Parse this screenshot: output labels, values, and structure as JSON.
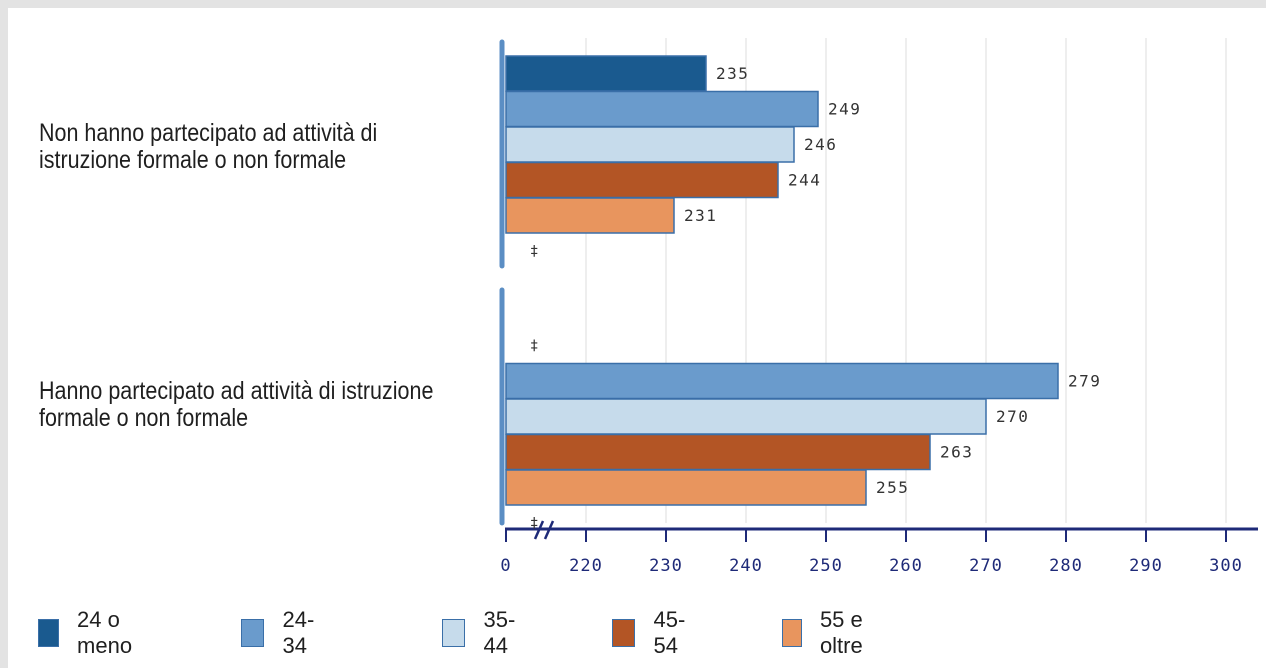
{
  "chart_data": {
    "type": "bar",
    "orientation": "horizontal",
    "categories": [
      "Non hanno partecipato ad attività di istruzione formale o non formale",
      "Hanno partecipato ad attività di istruzione formale o non formale"
    ],
    "series": [
      {
        "name": "24 o meno",
        "color": "#1a5a8f",
        "values": [
          235,
          null
        ],
        "labels": [
          "235",
          "‡"
        ]
      },
      {
        "name": "24-34",
        "color": "#6a9bcc",
        "values": [
          249,
          279
        ],
        "labels": [
          "249",
          "279"
        ]
      },
      {
        "name": "35-44",
        "color": "#c6dbeb",
        "values": [
          246,
          270
        ],
        "labels": [
          "246",
          "270"
        ]
      },
      {
        "name": "45-54",
        "color": "#b35525",
        "values": [
          244,
          263
        ],
        "labels": [
          "244",
          "263"
        ]
      },
      {
        "name": "55 e oltre",
        "color": "#e8955e",
        "values": [
          231,
          255
        ],
        "labels": [
          "231",
          "255"
        ]
      },
      {
        "name": "",
        "color": "#cccccc",
        "values": [
          null,
          null
        ],
        "labels": [
          "‡",
          "‡"
        ]
      }
    ],
    "x_ticks": [
      "0",
      "220",
      "230",
      "240",
      "250",
      "260",
      "270",
      "280",
      "290",
      "300"
    ],
    "axis_break": true,
    "xlim": [
      210,
      300
    ],
    "grid": true,
    "legend_position": "bottom",
    "title": "",
    "xlabel": "",
    "ylabel": ""
  },
  "legend": [
    {
      "label": "24 o meno",
      "color": "#1a5a8f"
    },
    {
      "label": "24-34",
      "color": "#6a9bcc"
    },
    {
      "label": "35-44",
      "color": "#c6dbeb"
    },
    {
      "label": "45-54",
      "color": "#b35525"
    },
    {
      "label": "55 e oltre",
      "color": "#e8955e"
    }
  ],
  "colors": {
    "axis": "#1e2a78",
    "left_axis": "#5b8ec4",
    "grid": "#dcdcdc",
    "bar_border": "#3a6fa8",
    "value_text": "#333333"
  }
}
